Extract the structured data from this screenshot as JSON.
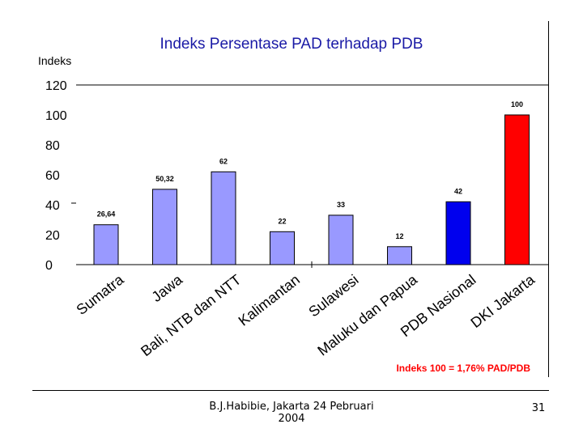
{
  "chart_data": {
    "type": "bar",
    "title": "Indeks Persentase PAD terhadap PDB",
    "ylabel": "Indeks",
    "xlabel": "",
    "ylim": [
      0,
      120
    ],
    "yticks": [
      "0",
      "20",
      "40",
      "60",
      "80",
      "100",
      "120"
    ],
    "ytick_values": [
      0,
      20,
      40,
      60,
      80,
      100,
      120
    ],
    "categories": [
      "Sumatra",
      "Jawa",
      "Bali, NTB dan NTT",
      "Kalimantan",
      "Sulawesi",
      "Maluku dan Papua",
      "PDB Nasional",
      "DKI Jakarta"
    ],
    "values": [
      26.64,
      50.32,
      62,
      22,
      33,
      12,
      42,
      100
    ],
    "value_labels": [
      "26,64",
      "50,32",
      "62",
      "22",
      "33",
      "12",
      "42",
      "100"
    ],
    "colors": [
      "#9999ff",
      "#9999ff",
      "#9999ff",
      "#9999ff",
      "#9999ff",
      "#9999ff",
      "#0000ee",
      "#ff0000"
    ],
    "annotation": "Indeks 100 = 1,76% PAD/PDB",
    "annotation_color": "#ff0000",
    "title_color": "#1a1aa6",
    "grid": false
  },
  "footer": {
    "author_line1": "B.J.Habibie, Jakarta 24 Pebruari",
    "author_line2": "2004",
    "page_number": "31"
  }
}
